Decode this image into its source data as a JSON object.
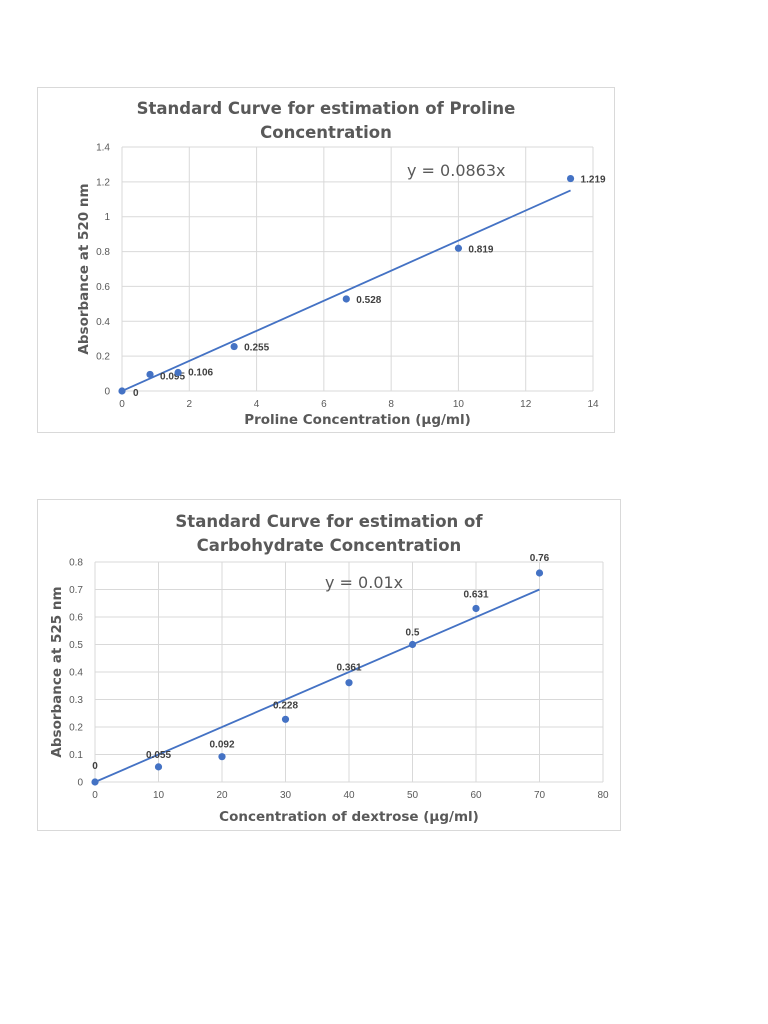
{
  "chart_data": [
    {
      "type": "scatter",
      "title": "Standard Curve for estimation of Proline Concentration",
      "title_lines": [
        "Standard Curve for estimation of Proline",
        "Concentration"
      ],
      "xlabel": "Proline Concentration (µg/ml)",
      "ylabel": "Absorbance at 520 nm",
      "xlim": [
        0,
        14
      ],
      "ylim": [
        0,
        1.4
      ],
      "xticks": [
        "0",
        "2",
        "4",
        "6",
        "8",
        "10",
        "12",
        "14"
      ],
      "yticks": [
        "0",
        "0.2",
        "0.4",
        "0.6",
        "0.8",
        "1",
        "1.2",
        "1.4"
      ],
      "grid": true,
      "legend": "none",
      "series": [
        {
          "name": "Absorbance",
          "x": [
            0,
            0.833,
            1.667,
            3.333,
            6.667,
            10,
            13.333
          ],
          "y": [
            0,
            0.095,
            0.106,
            0.255,
            0.528,
            0.819,
            1.219
          ],
          "labels": [
            "0",
            "0.095",
            "0.106",
            "0.255",
            "0.528",
            "0.819",
            "1.219"
          ],
          "color": "#4472c4"
        }
      ],
      "trendline": {
        "type": "linear",
        "slope": 0.0863,
        "intercept": 0,
        "x_range": [
          0,
          13.333
        ],
        "equation": "y = 0.0863x",
        "color": "#4472c4"
      }
    },
    {
      "type": "scatter",
      "title": "Standard Curve for estimation of Carbohydrate Concentration",
      "title_lines": [
        "Standard Curve for estimation of",
        "Carbohydrate Concentration"
      ],
      "xlabel": "Concentration of dextrose (µg/ml)",
      "ylabel": "Absorbance at 525 nm",
      "xlim": [
        0,
        80
      ],
      "ylim": [
        0,
        0.8
      ],
      "xticks": [
        "0",
        "10",
        "20",
        "30",
        "40",
        "50",
        "60",
        "70",
        "80"
      ],
      "yticks": [
        "0",
        "0.1",
        "0.2",
        "0.3",
        "0.4",
        "0.5",
        "0.6",
        "0.7",
        "0.8"
      ],
      "grid": true,
      "legend": "none",
      "series": [
        {
          "name": "Absorbance",
          "x": [
            0,
            10,
            20,
            30,
            40,
            50,
            60,
            70
          ],
          "y": [
            0,
            0.055,
            0.092,
            0.228,
            0.361,
            0.5,
            0.631,
            0.76
          ],
          "labels": [
            "0",
            "0.055",
            "0.092",
            "0.228",
            "0.361",
            "0.5",
            "0.631",
            "0.76"
          ],
          "color": "#4472c4"
        }
      ],
      "trendline": {
        "type": "linear",
        "slope": 0.01,
        "intercept": 0,
        "x_range": [
          0,
          70
        ],
        "equation": "y = 0.01x",
        "color": "#4472c4"
      }
    }
  ]
}
